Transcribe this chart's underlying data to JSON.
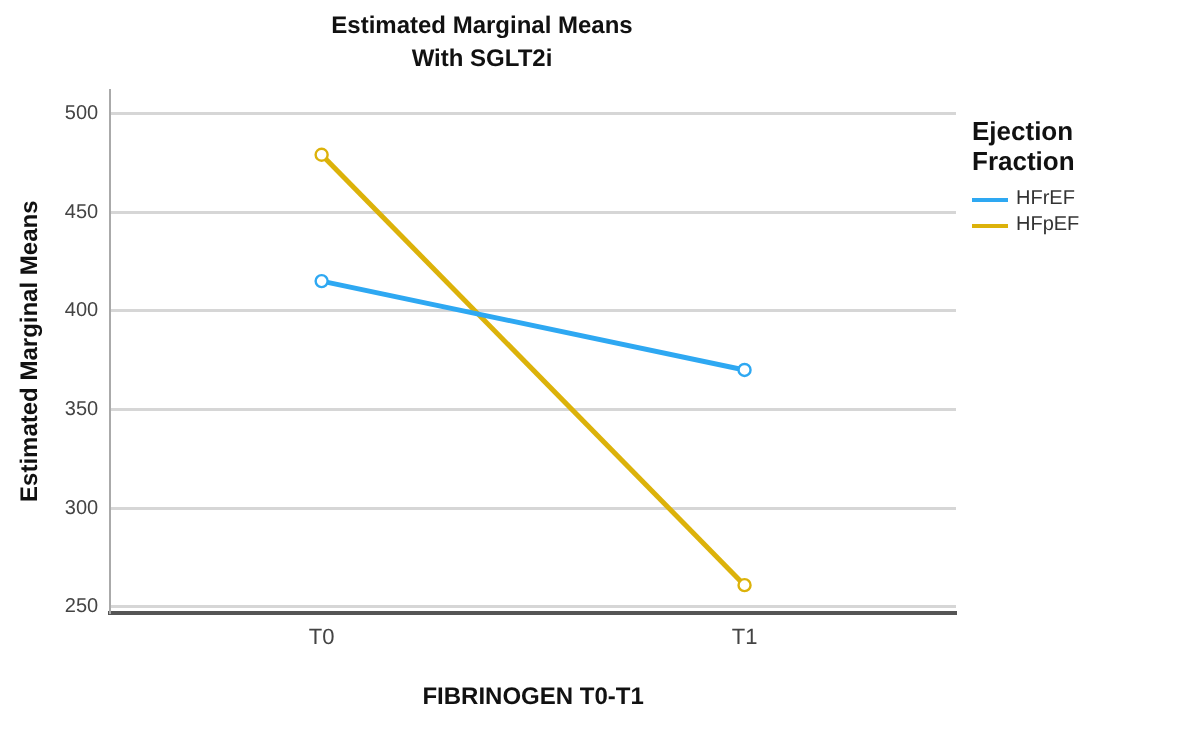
{
  "chart_data": {
    "type": "line",
    "title": "Estimated Marginal Means",
    "subtitle": "With SGLT2i",
    "xlabel": "FIBRINOGEN T0-T1",
    "ylabel": "Estimated Marginal Means",
    "legend_title": "Ejection Fraction",
    "categories": [
      "T0",
      "T1"
    ],
    "series": [
      {
        "name": "HFrEF",
        "color": "#2ea8f2",
        "values": [
          415,
          370
        ]
      },
      {
        "name": "HFpEF",
        "color": "#dcb20a",
        "values": [
          479,
          261
        ]
      }
    ],
    "ylim": [
      247,
      512
    ],
    "yticks": [
      250,
      300,
      350,
      400,
      450,
      500
    ],
    "grid": "y",
    "legend": "right",
    "marker": "circle",
    "line_style": "solid"
  }
}
